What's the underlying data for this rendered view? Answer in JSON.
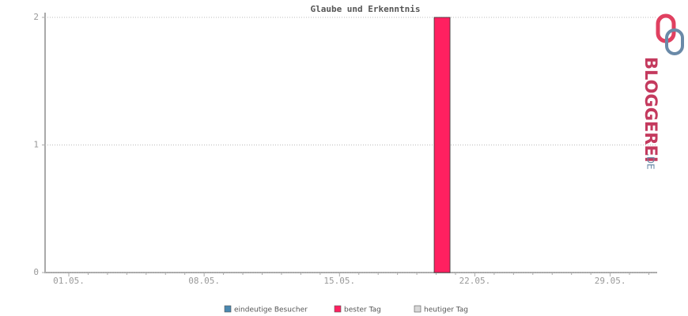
{
  "chart_data": {
    "type": "bar",
    "title": "Glaube und Erkenntnis",
    "categories": [
      "01.05.",
      null,
      null,
      null,
      null,
      null,
      null,
      "08.05.",
      null,
      null,
      null,
      null,
      null,
      null,
      "15.05.",
      null,
      null,
      null,
      null,
      null,
      null,
      "22.05.",
      null,
      null,
      null,
      null,
      null,
      null,
      "29.05.",
      null,
      null
    ],
    "series": [
      {
        "name": "eindeutige Besucher",
        "color": "#4a88b0",
        "values": [
          null,
          null,
          null,
          null,
          null,
          null,
          null,
          null,
          null,
          null,
          null,
          null,
          null,
          null,
          null,
          null,
          null,
          null,
          null,
          null,
          null,
          null,
          null,
          null,
          null,
          null,
          null,
          null,
          null,
          null,
          null
        ]
      },
      {
        "name": "bester Tag",
        "color": "#ff2060",
        "values": [
          null,
          null,
          null,
          null,
          null,
          null,
          null,
          null,
          null,
          null,
          null,
          null,
          null,
          null,
          null,
          null,
          null,
          null,
          null,
          2,
          null,
          null,
          null,
          null,
          null,
          null,
          null,
          null,
          null,
          null,
          null
        ]
      },
      {
        "name": "heutiger Tag",
        "color": "#d8d8d8",
        "values": [
          null,
          null,
          null,
          null,
          null,
          null,
          null,
          null,
          null,
          null,
          null,
          null,
          null,
          null,
          null,
          null,
          null,
          null,
          null,
          null,
          null,
          null,
          null,
          null,
          null,
          null,
          null,
          null,
          null,
          null,
          null
        ]
      }
    ],
    "ylim": [
      0,
      2
    ],
    "yticks": [
      0,
      1,
      2
    ],
    "grid": true
  },
  "logo": {
    "text": "BLOGGEREI",
    "suffix": ".DE"
  }
}
